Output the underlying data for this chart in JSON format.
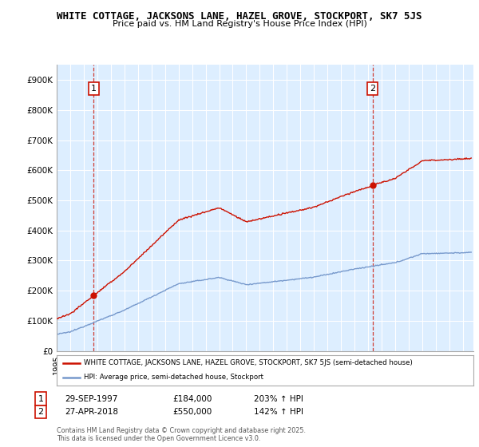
{
  "title_line1": "WHITE COTTAGE, JACKSONS LANE, HAZEL GROVE, STOCKPORT, SK7 5JS",
  "title_line2": "Price paid vs. HM Land Registry's House Price Index (HPI)",
  "ylim": [
    0,
    950000
  ],
  "yticks": [
    0,
    100000,
    200000,
    300000,
    400000,
    500000,
    600000,
    700000,
    800000,
    900000
  ],
  "ytick_labels": [
    "£0",
    "£100K",
    "£200K",
    "£300K",
    "£400K",
    "£500K",
    "£600K",
    "£700K",
    "£800K",
    "£900K"
  ],
  "xlim_start": 1995.25,
  "xlim_end": 2025.75,
  "hpi_color": "#7799cc",
  "price_color": "#cc1100",
  "plot_bg_color": "#ddeeff",
  "sale1_date": 1997.747,
  "sale1_price": 184000,
  "sale2_date": 2018.32,
  "sale2_price": 550000,
  "legend_red_label": "WHITE COTTAGE, JACKSONS LANE, HAZEL GROVE, STOCKPORT, SK7 5JS (semi-detached house)",
  "legend_blue_label": "HPI: Average price, semi-detached house, Stockport",
  "note1_date": "29-SEP-1997",
  "note1_price": "£184,000",
  "note1_hpi": "203% ↑ HPI",
  "note2_date": "27-APR-2018",
  "note2_price": "£550,000",
  "note2_hpi": "142% ↑ HPI",
  "footer": "Contains HM Land Registry data © Crown copyright and database right 2025.\nThis data is licensed under the Open Government Licence v3.0.",
  "background_color": "#ffffff",
  "grid_color": "#ffffff"
}
